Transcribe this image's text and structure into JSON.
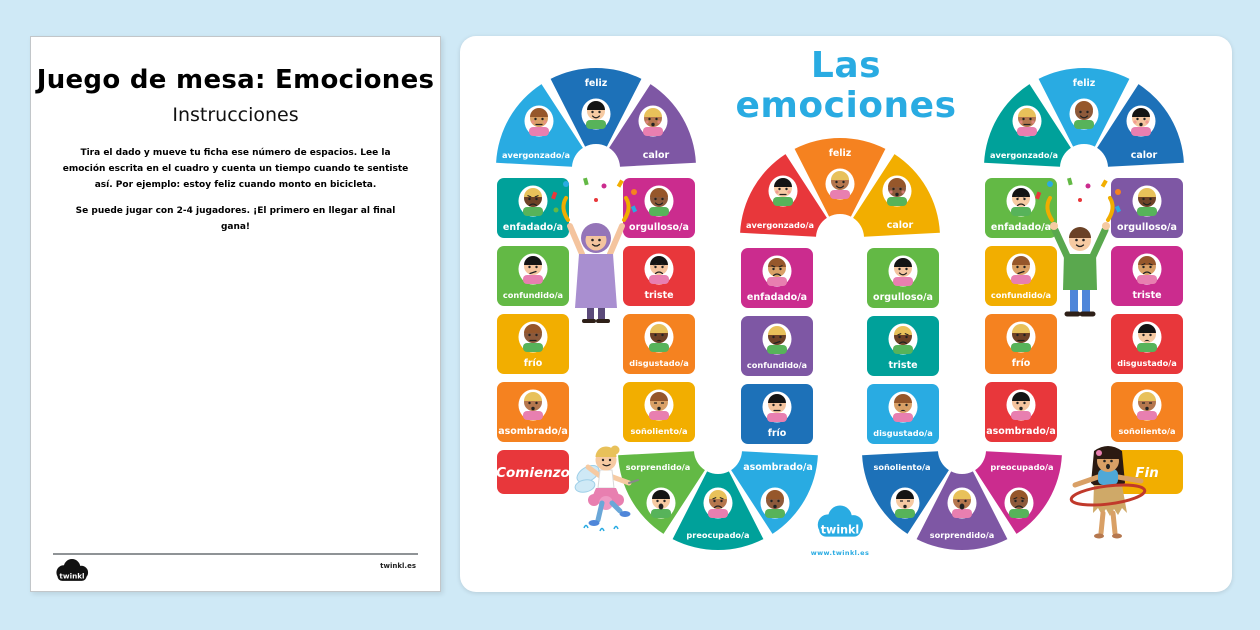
{
  "background_color": "#cfe9f6",
  "left_page": {
    "title": "Juego de mesa: Emociones",
    "subtitle": "Instrucciones",
    "paragraph1": "Tira el dado y mueve tu ficha ese número de espacios. Lee la emoción escrita en el cuadro y cuenta un tiempo cuando te sentiste así. Por ejemplo: estoy feliz cuando monto en bicicleta.",
    "paragraph2": "Se puede jugar con 2-4 jugadores. ¡El primero en llegar al final gana!",
    "logo_text": "twinkl",
    "footer_right": "twinkl.es"
  },
  "board": {
    "title_line1": "Las",
    "title_line2": "emociones",
    "title_color": "#29abe2",
    "logo_text": "twinkl",
    "logo_subtext": "www.twinkl.es",
    "start_label": "Comienzo",
    "end_label": "Fin",
    "palette": {
      "red": "#e8373b",
      "orange": "#f58220",
      "yellow": "#f2ae00",
      "green": "#63b945",
      "teal": "#00a19a",
      "lightblue": "#29abe2",
      "darkblue": "#1d71b8",
      "purple": "#7e57a4",
      "magenta": "#cb2c8e"
    },
    "path": [
      {
        "label": "Comienzo",
        "color": "red"
      },
      {
        "label": "asombrado/a",
        "color": "orange"
      },
      {
        "label": "frío",
        "color": "yellow"
      },
      {
        "label": "confundido/a",
        "color": "green"
      },
      {
        "label": "enfadado/a",
        "color": "teal"
      },
      {
        "label": "avergonzado/a",
        "color": "lightblue"
      },
      {
        "label": "feliz",
        "color": "darkblue"
      },
      {
        "label": "calor",
        "color": "purple"
      },
      {
        "label": "orgulloso/a",
        "color": "magenta"
      },
      {
        "label": "triste",
        "color": "red"
      },
      {
        "label": "disgustado/a",
        "color": "orange"
      },
      {
        "label": "soñoliento/a",
        "color": "yellow"
      },
      {
        "label": "sorprendido/a",
        "color": "green"
      },
      {
        "label": "preocupado/a",
        "color": "teal"
      },
      {
        "label": "asombrado/a",
        "color": "lightblue"
      },
      {
        "label": "frío",
        "color": "darkblue"
      },
      {
        "label": "confundido/a",
        "color": "purple"
      },
      {
        "label": "enfadado/a",
        "color": "magenta"
      },
      {
        "label": "avergonzado/a",
        "color": "red"
      },
      {
        "label": "feliz",
        "color": "orange"
      },
      {
        "label": "calor",
        "color": "yellow"
      },
      {
        "label": "orgulloso/a",
        "color": "green"
      },
      {
        "label": "triste",
        "color": "teal"
      },
      {
        "label": "disgustado/a",
        "color": "lightblue"
      },
      {
        "label": "soñoliento/a",
        "color": "darkblue"
      },
      {
        "label": "sorprendido/a",
        "color": "purple"
      },
      {
        "label": "preocupado/a",
        "color": "magenta"
      },
      {
        "label": "asombrado/a",
        "color": "red"
      },
      {
        "label": "frío",
        "color": "orange"
      },
      {
        "label": "confundido/a",
        "color": "yellow"
      },
      {
        "label": "enfadado/a",
        "color": "green"
      },
      {
        "label": "avergonzado/a",
        "color": "teal"
      },
      {
        "label": "feliz",
        "color": "lightblue"
      },
      {
        "label": "calor",
        "color": "darkblue"
      },
      {
        "label": "orgulloso/a",
        "color": "purple"
      },
      {
        "label": "triste",
        "color": "magenta"
      },
      {
        "label": "disgustado/a",
        "color": "red"
      },
      {
        "label": "soñoliento/a",
        "color": "orange"
      },
      {
        "label": "Fin",
        "color": "yellow"
      }
    ]
  }
}
